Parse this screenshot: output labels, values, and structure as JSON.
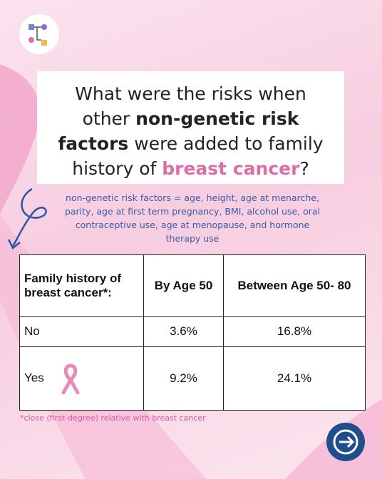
{
  "header": {
    "title": [
      {
        "text": "What were the risks when other ",
        "style": "plain"
      },
      {
        "text": "non-genetic risk factors",
        "style": "bold"
      },
      {
        "text": " were added to family history of ",
        "style": "plain"
      },
      {
        "text": "breast cancer",
        "style": "pink"
      },
      {
        "text": "?",
        "style": "plain"
      }
    ],
    "note": "non-genetic risk factors = age, height, age at menarche, parity, age at first term pregnancy, BMI, alcohol use, oral contraceptive use, age at menopause, and hormone therapy use"
  },
  "table": {
    "columns": [
      "Family history of breast cancer*:",
      "By Age 50",
      "Between Age 50- 80"
    ],
    "rows": [
      [
        "No",
        "3.6%",
        "16.8%"
      ],
      [
        "Yes",
        "9.2%",
        "24.1%"
      ]
    ]
  },
  "footnote": "*close (first-degree) relative with breast cancer"
}
